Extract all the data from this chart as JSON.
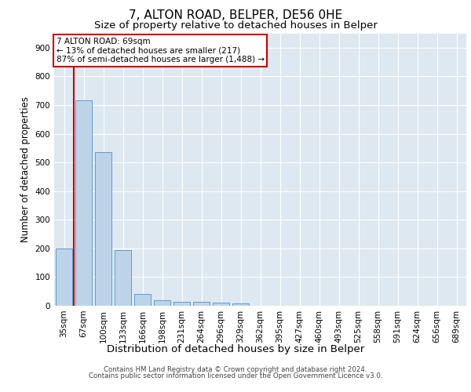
{
  "title1": "7, ALTON ROAD, BELPER, DE56 0HE",
  "title2": "Size of property relative to detached houses in Belper",
  "xlabel": "Distribution of detached houses by size in Belper",
  "ylabel": "Number of detached properties",
  "categories": [
    "35sqm",
    "67sqm",
    "100sqm",
    "133sqm",
    "166sqm",
    "198sqm",
    "231sqm",
    "264sqm",
    "296sqm",
    "329sqm",
    "362sqm",
    "395sqm",
    "427sqm",
    "460sqm",
    "493sqm",
    "525sqm",
    "558sqm",
    "591sqm",
    "624sqm",
    "656sqm",
    "689sqm"
  ],
  "values": [
    200,
    715,
    535,
    193,
    42,
    20,
    15,
    13,
    10,
    8,
    0,
    0,
    0,
    0,
    0,
    0,
    0,
    0,
    0,
    0,
    0
  ],
  "bar_color": "#bdd4e8",
  "bar_edge_color": "#5b9bd5",
  "bar_width": 0.85,
  "vline_x": 0.5,
  "vline_color": "#cc0000",
  "annotation_line1": "7 ALTON ROAD: 69sqm",
  "annotation_line2": "← 13% of detached houses are smaller (217)",
  "annotation_line3": "87% of semi-detached houses are larger (1,488) →",
  "annotation_box_facecolor": "#ffffff",
  "annotation_box_edgecolor": "#cc0000",
  "ylim": [
    0,
    950
  ],
  "yticks": [
    0,
    100,
    200,
    300,
    400,
    500,
    600,
    700,
    800,
    900
  ],
  "plot_bg_color": "#dde8f0",
  "footer1": "Contains HM Land Registry data © Crown copyright and database right 2024.",
  "footer2": "Contains public sector information licensed under the Open Government Licence v3.0.",
  "title1_fontsize": 11,
  "title2_fontsize": 9.5,
  "tick_fontsize": 7.5,
  "ylabel_fontsize": 8.5,
  "xlabel_fontsize": 9.5,
  "annotation_fontsize": 7.5,
  "footer_fontsize": 6.2
}
